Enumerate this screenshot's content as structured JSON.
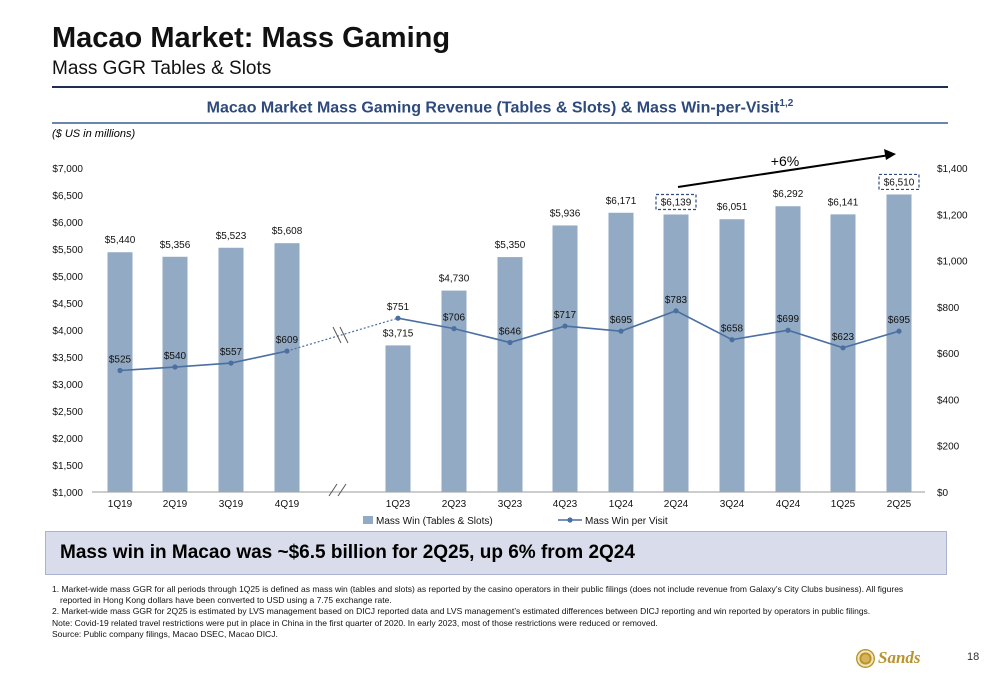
{
  "header": {
    "title": "Macao Market: Mass Gaming",
    "subtitle": "Mass GGR Tables & Slots"
  },
  "chart_heading": {
    "text": "Macao Market Mass Gaming Revenue (Tables & Slots) & Mass Win-per-Visit",
    "superscript": "1,2",
    "units_note": "($ US in millions)"
  },
  "chart_data": {
    "type": "bar",
    "categories": [
      "1Q19",
      "2Q19",
      "3Q19",
      "4Q19",
      "1Q23",
      "2Q23",
      "3Q23",
      "4Q23",
      "1Q24",
      "2Q24",
      "3Q24",
      "4Q24",
      "1Q25",
      "2Q25"
    ],
    "series": [
      {
        "name": "Mass Win (Tables & Slots)",
        "type": "bar",
        "axis": "left",
        "color": "#93aac4",
        "values": [
          5440,
          5356,
          5523,
          5608,
          3715,
          4730,
          5350,
          5936,
          6171,
          6139,
          6051,
          6292,
          6141,
          6510
        ],
        "labels": [
          "$5,440",
          "$5,356",
          "$5,523",
          "$5,608",
          "$3,715",
          "$4,730",
          "$5,350",
          "$5,936",
          "$6,171",
          "$6,139",
          "$6,051",
          "$6,292",
          "$6,141",
          "$6,510"
        ]
      },
      {
        "name": "Mass Win per Visit",
        "type": "line",
        "axis": "right",
        "color": "#4a6fa0",
        "values": [
          525,
          540,
          557,
          609,
          751,
          706,
          646,
          717,
          695,
          783,
          658,
          699,
          623,
          695
        ],
        "labels": [
          "$525",
          "$540",
          "$557",
          "$609",
          "$751",
          "$706",
          "$646",
          "$717",
          "$695",
          "$783",
          "$658",
          "$699",
          "$623",
          "$695"
        ]
      }
    ],
    "left_axis": {
      "min": 1000,
      "max": 7000,
      "ticks": [
        1000,
        1500,
        2000,
        2500,
        3000,
        3500,
        4000,
        4500,
        5000,
        5500,
        6000,
        6500,
        7000
      ],
      "tick_labels": [
        "$1,000",
        "$1,500",
        "$2,000",
        "$2,500",
        "$3,000",
        "$3,500",
        "$4,000",
        "$4,500",
        "$5,000",
        "$5,500",
        "$6,000",
        "$6,500",
        "$7,000"
      ]
    },
    "right_axis": {
      "min": 0,
      "max": 1400,
      "ticks": [
        0,
        200,
        400,
        600,
        800,
        1000,
        1200,
        1400
      ],
      "tick_labels": [
        "$0",
        "$200",
        "$400",
        "$600",
        "$800",
        "$1,000",
        "$1,200",
        "$1,400"
      ]
    },
    "axis_break_after_index": 3,
    "highlighted_indices": [
      9,
      13
    ],
    "growth_annotation": "+6%",
    "legend_position": "bottom"
  },
  "callout": {
    "text": "Mass win in Macao was ~$6.5 billion for 2Q25, up 6% from 2Q24"
  },
  "notes": {
    "line1": "1. Market-wide mass GGR for all periods through 1Q25 is defined as mass win (tables and slots) as reported by the casino operators in their public filings (does not include revenue from Galaxy’s City Clubs business).  All figures",
    "line1b": "reported in Hong Kong dollars have been converted to USD using a 7.75 exchange rate.",
    "line2": "2. Market-wide mass GGR for 2Q25 is estimated by LVS management based on DICJ reported data and LVS management’s estimated differences between DICJ reporting and win reported by operators in public filings.",
    "line3": "Note: Covid-19 related travel restrictions were put in place in China in the first quarter of 2020.  In early 2023, most of those restrictions were reduced or removed.",
    "line4": "Source: Public company filings, Macao DSEC, Macao DICJ."
  },
  "footer": {
    "logo_text": "Sands",
    "page_number": "18"
  }
}
